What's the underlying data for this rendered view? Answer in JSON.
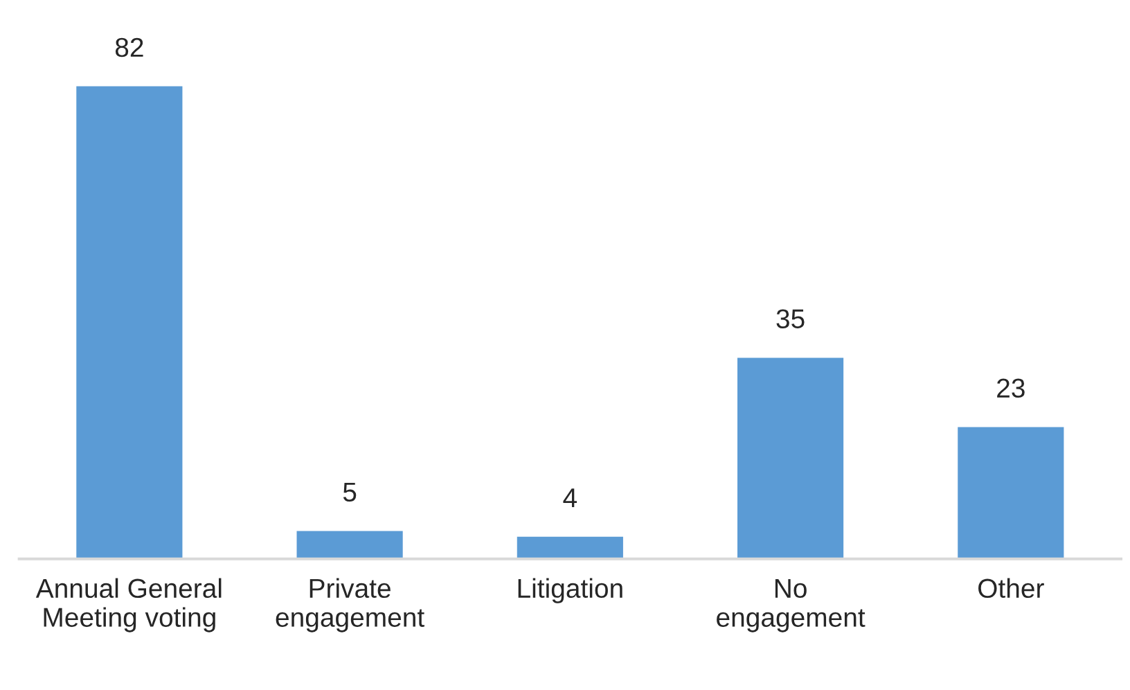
{
  "chart_data": {
    "type": "bar",
    "categories": [
      "Annual General\nMeeting voting",
      "Private\nengagement",
      "Litigation",
      "No\nengagement",
      "Other"
    ],
    "values": [
      82,
      5,
      4,
      35,
      23
    ],
    "color": "#5b9bd5",
    "data_labels": true,
    "grid": false,
    "tick_labels": "x"
  }
}
